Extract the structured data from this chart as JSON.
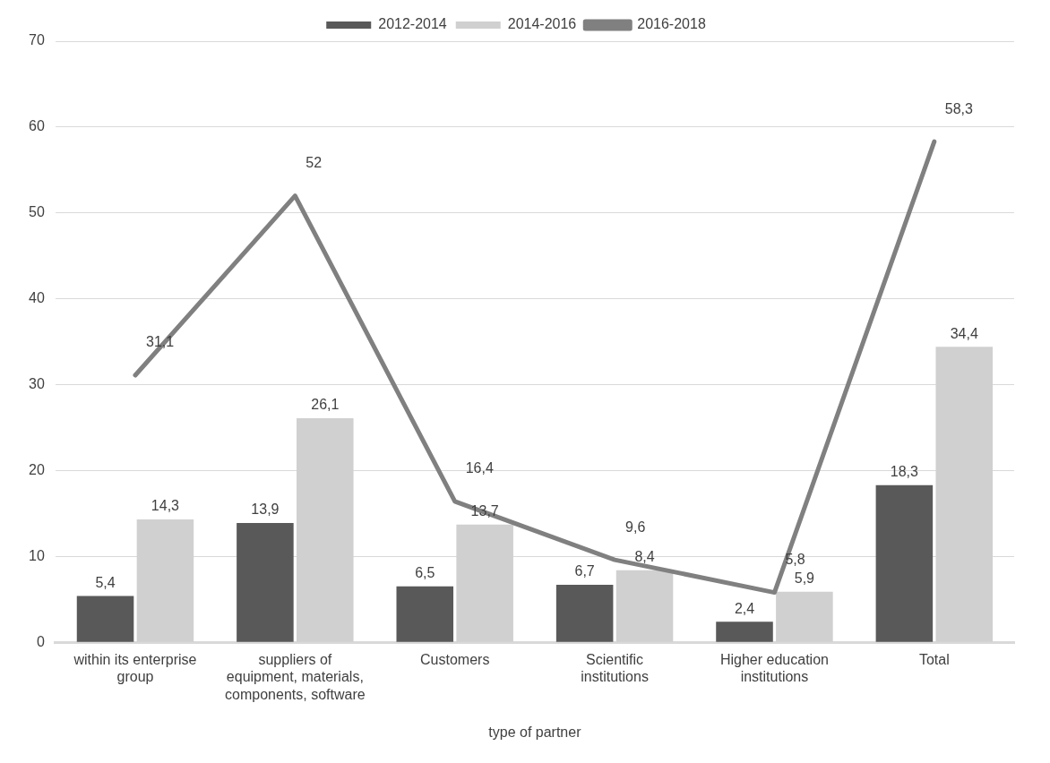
{
  "chart_data": {
    "type": "bar",
    "xlabel": "type of partner",
    "categories": [
      "within its enterprise group",
      "suppliers of equipment, materials, components, software",
      "Customers",
      "Scientific institutions",
      "Higher education institutions",
      "Total"
    ],
    "series": [
      {
        "name": "2012-2014",
        "color": "#595959",
        "values": [
          5.4,
          13.9,
          6.5,
          6.7,
          2.4,
          18.3
        ],
        "value_labels": [
          "5,4",
          "13,9",
          "6,5",
          "6,7",
          "2,4",
          "18,3"
        ]
      },
      {
        "name": "2014-2016",
        "color": "#d0d0d0",
        "values": [
          14.3,
          26.1,
          13.7,
          8.4,
          5.9,
          34.4
        ],
        "value_labels": [
          "14,3",
          "26,1",
          "13,7",
          "8,4",
          "5,9",
          "34,4"
        ]
      },
      {
        "name": "2016-2018",
        "type": "line",
        "color": "#808080",
        "values": [
          31.1,
          52,
          16.4,
          9.6,
          5.8,
          58.3
        ],
        "value_labels": [
          "31,1",
          "52",
          "16,4",
          "9,6",
          "5,8",
          "58,3"
        ]
      }
    ],
    "ylim": [
      0,
      70
    ],
    "yticks": [
      0,
      10,
      20,
      30,
      40,
      50,
      60,
      70
    ],
    "grid": "y",
    "legend": "top",
    "marker": "none"
  }
}
